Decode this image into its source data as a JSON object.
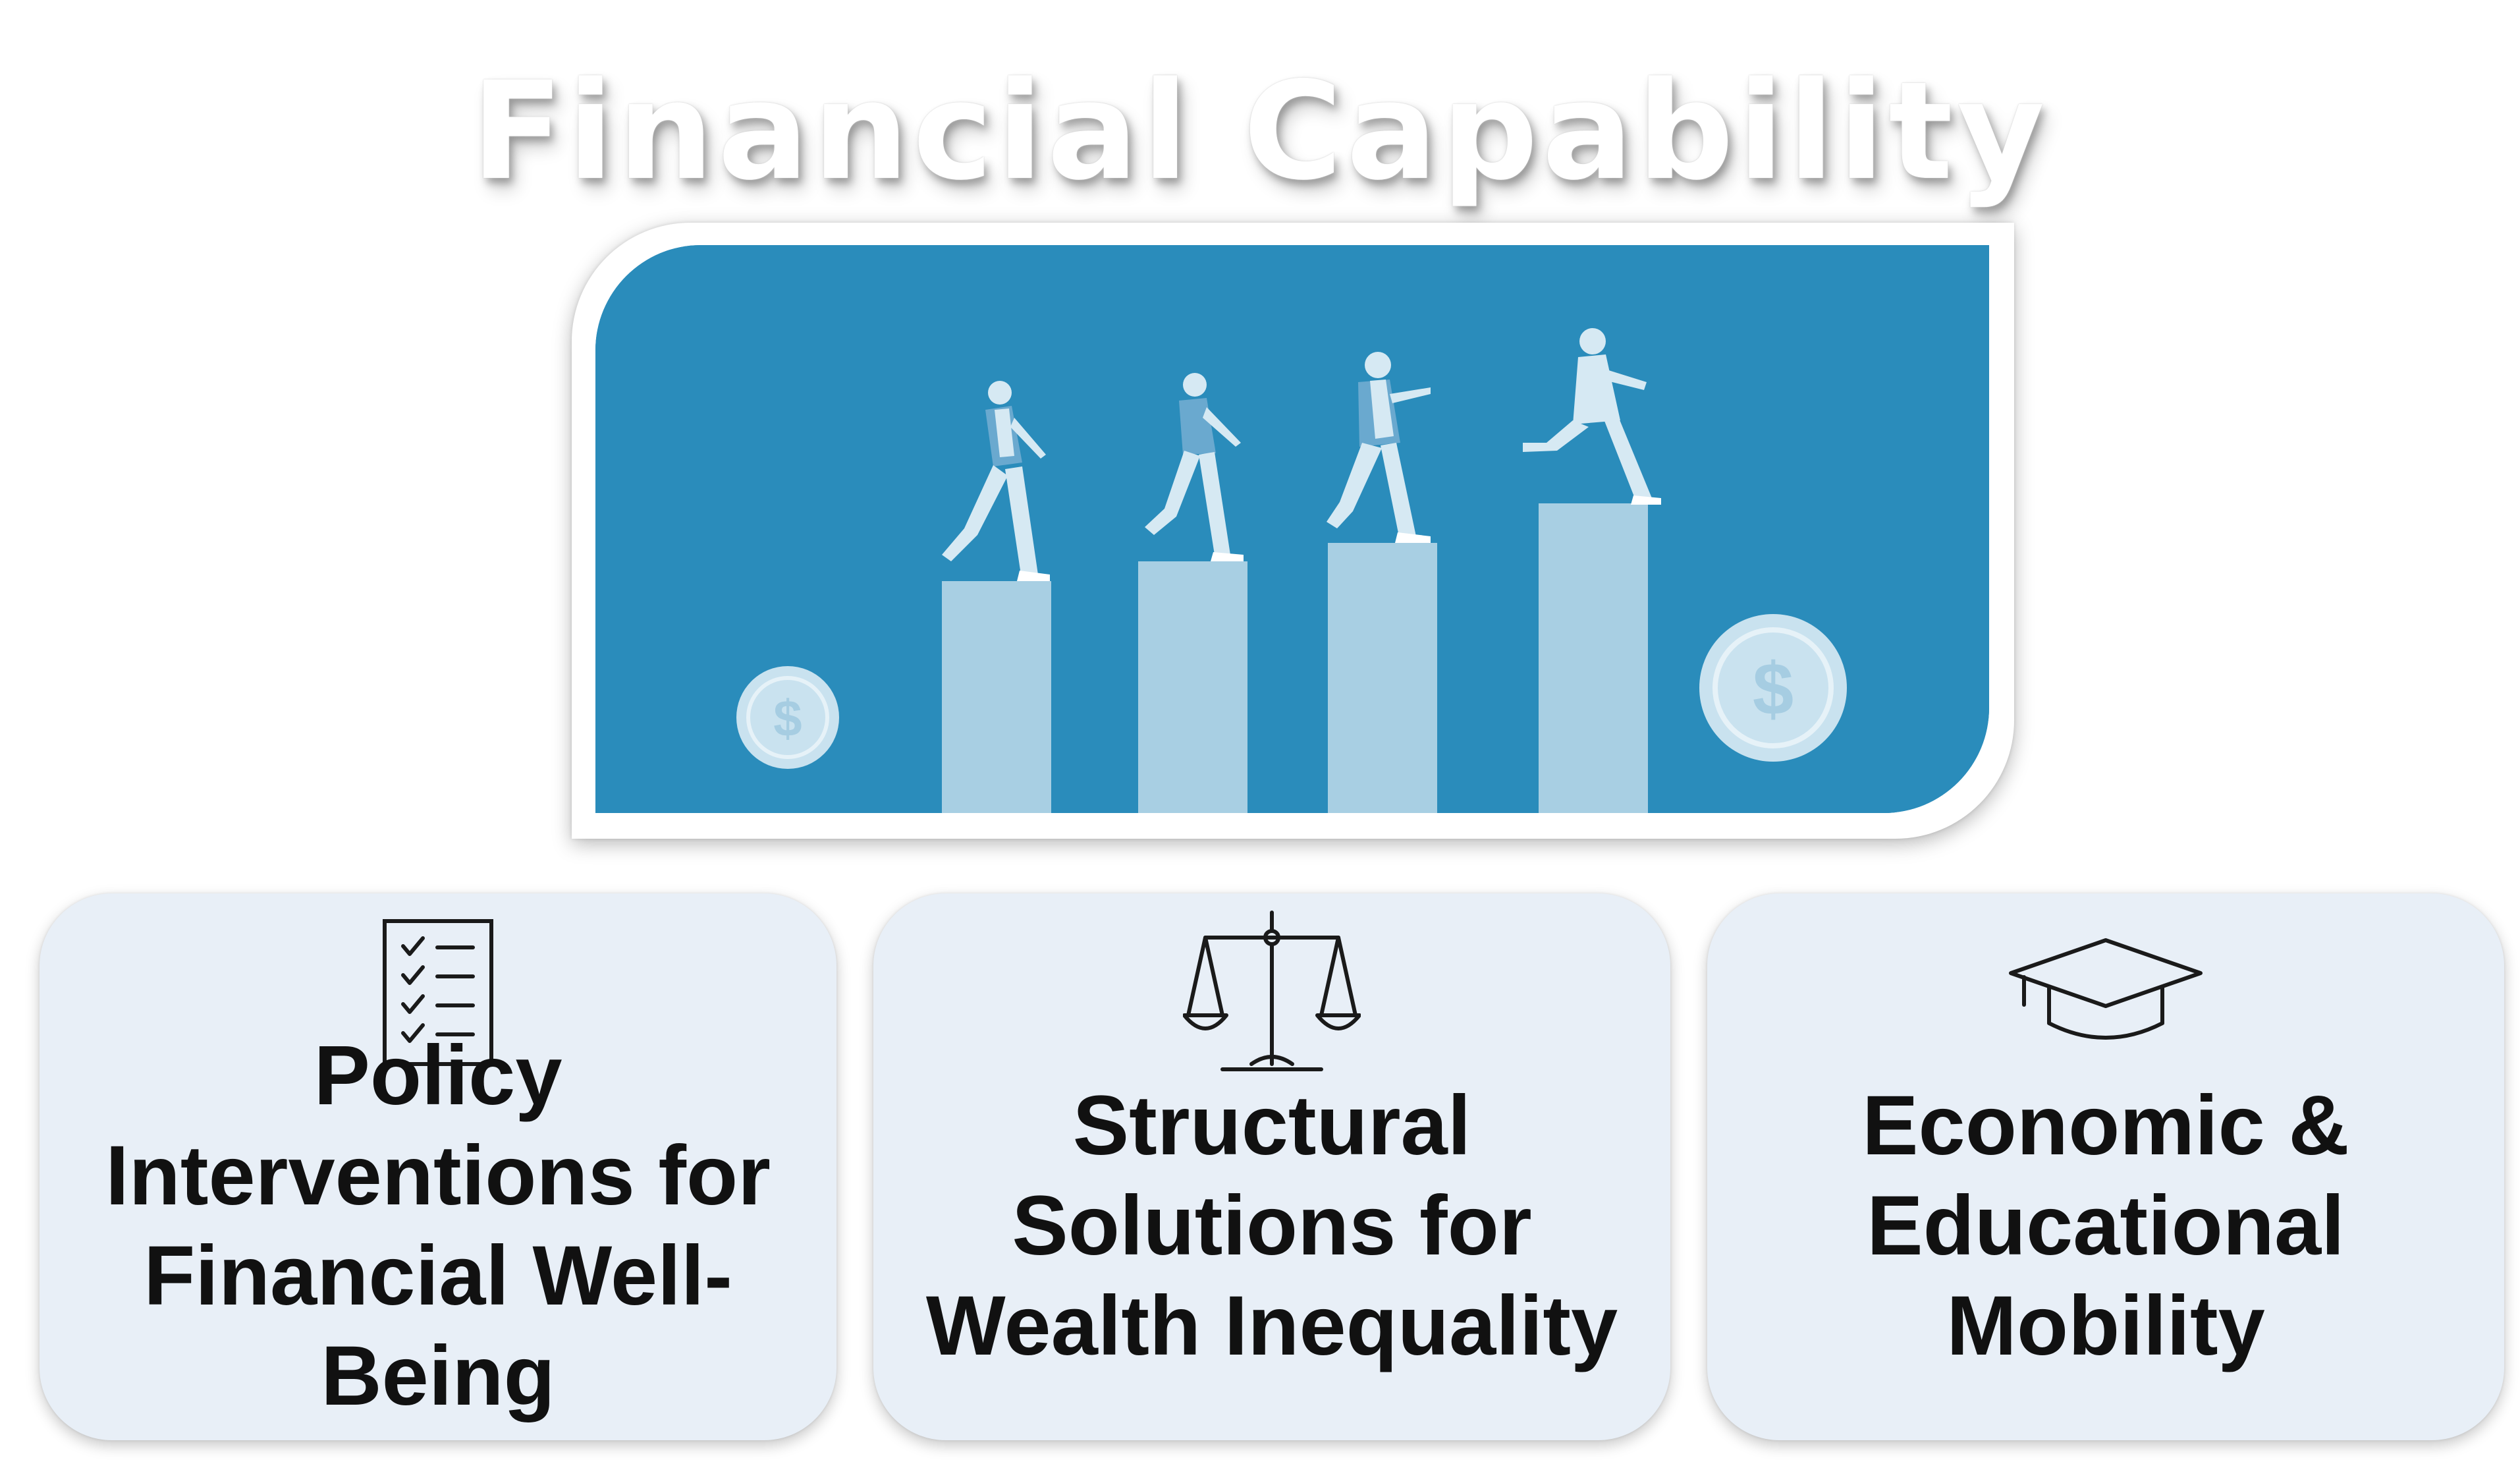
{
  "title": "Financial Capability",
  "hero": {
    "image_name": "people-climbing-bar-steps-illustration",
    "bg_color": "#2a8cbb",
    "bar_color": "#a8cfe3",
    "coin_color": "#c9e2ef"
  },
  "cards": [
    {
      "icon": "checklist-icon",
      "label": "Policy Interventions for Financial Well-Being"
    },
    {
      "icon": "balance-scale-icon",
      "label": "Structural Solutions for Wealth Inequality"
    },
    {
      "icon": "graduation-cap-icon",
      "label": "Economic & Educational Mobility"
    }
  ],
  "colors": {
    "card_bg": "#e8eff7",
    "text": "#111111",
    "title": "#ffffff"
  }
}
